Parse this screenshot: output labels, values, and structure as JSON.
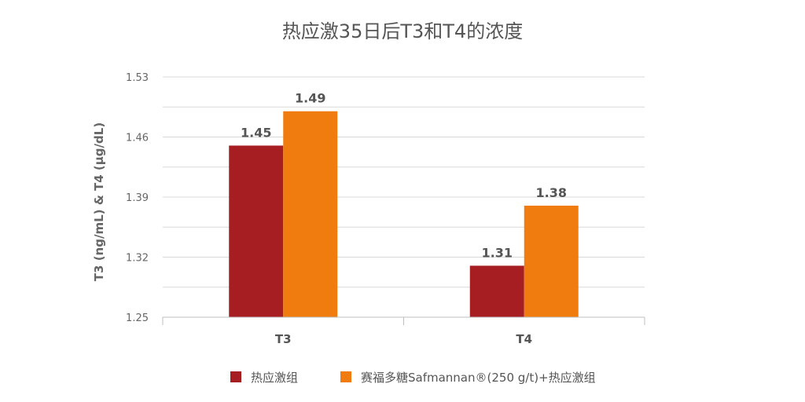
{
  "chart_data": {
    "type": "bar",
    "title": "热应激35日后T3和T4的浓度",
    "xlabel": "",
    "ylabel": "T3 (ng/mL) & T4 (μg/dL)",
    "categories": [
      "T3",
      "T4"
    ],
    "ylim": [
      1.25,
      1.53
    ],
    "yticks": [
      "1.25",
      "1.32",
      "1.39",
      "1.46",
      "1.53"
    ],
    "grid": true,
    "legend_position": "bottom",
    "series": [
      {
        "name": "热应激组",
        "values": [
          1.45,
          1.31
        ],
        "labels": [
          "1.45",
          "1.31"
        ],
        "color": "#A61E22"
      },
      {
        "name": "赛福多糖Safmannan®(250 g/t)+热应激组",
        "values": [
          1.49,
          1.38
        ],
        "labels": [
          "1.49",
          "1.38"
        ],
        "color": "#F07B0F"
      }
    ]
  }
}
